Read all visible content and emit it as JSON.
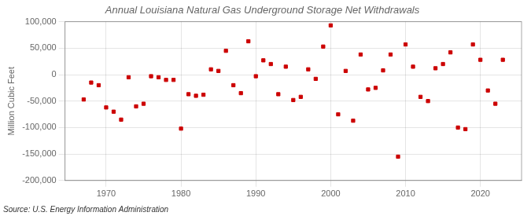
{
  "chart_data": {
    "type": "scatter",
    "title": "Annual Louisiana Natural Gas Underground Storage Net Withdrawals",
    "ylabel": "Million Cubic Feet",
    "annotation": "Source: U.S. Energy Information Administration",
    "color": "#cc0000",
    "marker": "square",
    "grid": true,
    "xlim": [
      1964.5,
      2025.5
    ],
    "xticks": [
      1970,
      1980,
      1990,
      2000,
      2010,
      2020
    ],
    "ylim": [
      -200000,
      100000
    ],
    "yticks": [
      {
        "value": -200000,
        "label": "-200,000"
      },
      {
        "value": -150000,
        "label": "-150,000"
      },
      {
        "value": -100000,
        "label": "-100,000"
      },
      {
        "value": -50000,
        "label": "-50,000"
      },
      0,
      {
        "value": 50000,
        "label": "50,000"
      },
      {
        "value": 100000,
        "label": "100,000"
      }
    ],
    "x": [
      1967,
      1968,
      1969,
      1970,
      1971,
      1972,
      1973,
      1974,
      1975,
      1976,
      1977,
      1978,
      1979,
      1980,
      1981,
      1982,
      1983,
      1984,
      1985,
      1986,
      1987,
      1988,
      1989,
      1990,
      1991,
      1992,
      1993,
      1994,
      1995,
      1996,
      1997,
      1998,
      1999,
      2000,
      2001,
      2002,
      2003,
      2004,
      2005,
      2006,
      2007,
      2008,
      2009,
      2010,
      2011,
      2012,
      2013,
      2014,
      2015,
      2016,
      2017,
      2018,
      2019,
      2020,
      2021,
      2022,
      2023
    ],
    "values": [
      -47000,
      -15000,
      -20000,
      -62000,
      -70000,
      -85000,
      -5000,
      -60000,
      -55000,
      -3000,
      -5000,
      -10000,
      -10000,
      -102000,
      -37000,
      -40000,
      -38000,
      10000,
      7000,
      45000,
      -20000,
      -35000,
      63000,
      -3000,
      27000,
      20000,
      -37000,
      15000,
      -48000,
      -42000,
      10000,
      -8000,
      53000,
      93000,
      -75000,
      7000,
      -87000,
      38000,
      -28000,
      -25000,
      8000,
      38000,
      -155000,
      57000,
      15000,
      -42000,
      -50000,
      12000,
      20000,
      42000,
      -100000,
      -103000,
      57000,
      28000,
      -30000,
      -55000,
      28000
    ]
  }
}
